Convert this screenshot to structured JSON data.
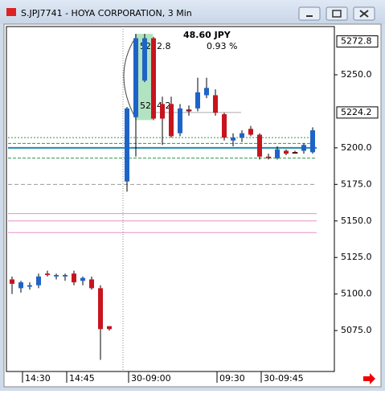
{
  "window_title": "S.JPJ7741 - HOYA CORPORATION, 3 Min",
  "chart_data": {
    "type": "candlestick",
    "categories": [
      null,
      "14:30",
      null,
      null,
      null,
      null,
      "14:45",
      null,
      null,
      null,
      null,
      null,
      null,
      "30-09:00",
      null,
      null,
      null,
      null,
      null,
      null,
      null,
      null,
      null,
      "09:30",
      null,
      null,
      null,
      null,
      "30-09:45",
      null,
      null,
      null,
      null,
      null,
      null
    ],
    "open": [
      5110,
      5104,
      5105,
      5106,
      5114,
      5112,
      5112,
      5114,
      5109,
      5110,
      5104,
      5078,
      null,
      5177,
      5221,
      5246,
      5275,
      5230,
      5230,
      5210,
      5226,
      5227,
      5236,
      5236,
      5223,
      5205,
      5207,
      5213,
      5209,
      5194,
      5193,
      5198,
      5197,
      5198,
      5197
    ],
    "high": [
      5112,
      5109,
      5108,
      5114,
      5116,
      5114,
      5114,
      5116,
      5112,
      5112,
      5106,
      5078,
      null,
      5228,
      5278,
      5278,
      5276,
      5235,
      5235,
      5230,
      5229,
      5248,
      5248,
      5240,
      5224,
      5210,
      5212,
      5215,
      5210,
      5196,
      5201,
      5199,
      5198,
      5203,
      5214
    ],
    "low": [
      5100,
      5101,
      5103,
      5104,
      5112,
      5110,
      5109,
      5106,
      5106,
      5103,
      5055,
      5075,
      null,
      5170,
      5194,
      5245,
      5219,
      5202,
      5207,
      5208,
      5222,
      5225,
      5234,
      5222,
      5205,
      5201,
      5204,
      5208,
      5192,
      5192,
      5192,
      5195,
      5196,
      5196,
      5196
    ],
    "close": [
      5107,
      5108,
      5106,
      5112,
      5113,
      5113,
      5113,
      5108,
      5111,
      5104,
      5076,
      5076,
      null,
      5227,
      5275,
      5275,
      5220,
      5220,
      5208,
      5227,
      5226,
      5238,
      5241,
      5224,
      5207,
      5207,
      5210,
      5209,
      5194,
      5193,
      5199,
      5196,
      5197,
      5202,
      5212
    ],
    "up_color": "#1e64c8",
    "down_color": "#c8141e",
    "ylim": [
      5047,
      5283
    ],
    "yticks": [
      {
        "value": 5075,
        "label": "5075.0"
      },
      {
        "value": 5100,
        "label": "5100.0"
      },
      {
        "value": 5125,
        "label": "5125.0"
      },
      {
        "value": 5150,
        "label": "5150.0"
      },
      {
        "value": 5175,
        "label": "5175.0"
      },
      {
        "value": 5200,
        "label": "5200.0"
      },
      {
        "value": 5250,
        "label": "5250.0"
      }
    ],
    "price_markers": [
      {
        "value": 5272.8,
        "label": "5272.8"
      },
      {
        "value": 5224.2,
        "label": "5224.2"
      }
    ],
    "levels": [
      {
        "value": 5203,
        "color": "#2a9a4a",
        "dash": "4,2"
      },
      {
        "value": 5193,
        "color": "#2a9a4a",
        "dash": "4,2"
      },
      {
        "value": 5200,
        "color": "#1a8fa8",
        "dash": "none"
      },
      {
        "value": 5207,
        "color": "#2a9a4a",
        "dash": "2,2"
      },
      {
        "value": 5175,
        "color": "#999999",
        "dash": "5,3"
      },
      {
        "value": 5155,
        "color": "#e890c8",
        "dash": "none"
      },
      {
        "value": 5150,
        "color": "#e890c8",
        "dash": "none"
      },
      {
        "value": 5142,
        "color": "#e890c8",
        "dash": "none"
      }
    ],
    "annotations": [
      "48.60 JPY",
      "0.93 %",
      "5272.8",
      "5224.2"
    ]
  }
}
